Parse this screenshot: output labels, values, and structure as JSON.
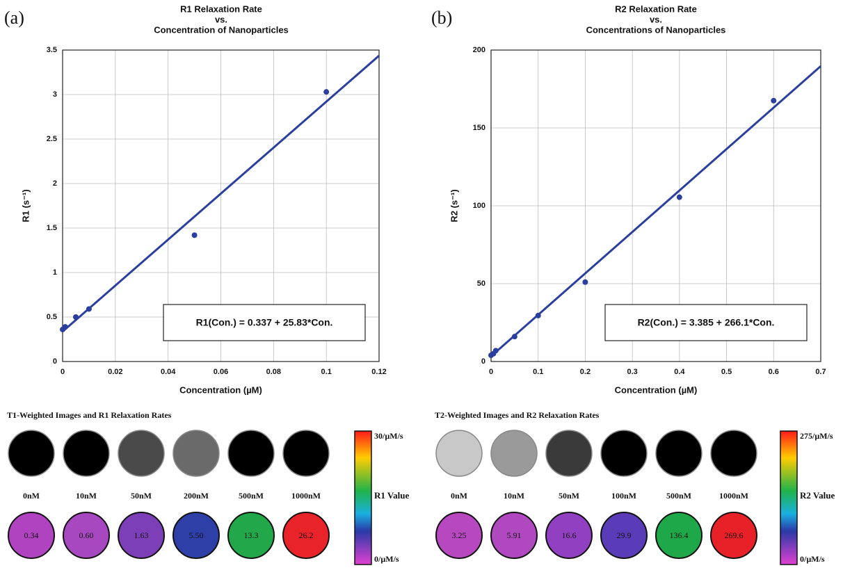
{
  "chart_data": [
    {
      "type": "scatter",
      "panel_label": "(a)",
      "title": [
        "R1 Relaxation Rate",
        "vs.",
        "Concentration of Nanoparticles"
      ],
      "xlabel": "Concentration (µM)",
      "ylabel": "R1 (s⁻¹)",
      "annotation": "R1(Con.) = 0.337 + 25.83*Con.",
      "xlim": [
        0,
        0.12
      ],
      "ylim": [
        0,
        3.5
      ],
      "xticks": [
        0,
        0.02,
        0.04,
        0.06,
        0.08,
        0.1,
        0.12
      ],
      "yticks": [
        0,
        0.5,
        1,
        1.5,
        2,
        2.5,
        3,
        3.5
      ],
      "grid": true,
      "series": [
        {
          "style": "points",
          "color": "#2b3f9e",
          "x": [
            0,
            0.001,
            0.005,
            0.01,
            0.05,
            0.1
          ],
          "values": [
            0.36,
            0.39,
            0.5,
            0.59,
            1.42,
            3.03
          ]
        },
        {
          "style": "line",
          "color": "#2b3f9e",
          "x": [
            0,
            0.12
          ],
          "values": [
            0.337,
            3.437
          ]
        }
      ]
    },
    {
      "type": "scatter",
      "panel_label": "(b)",
      "title": [
        "R2 Relaxation Rate",
        "vs.",
        "Concentrations of Nanoparticles"
      ],
      "xlabel": "Concentration (µM)",
      "ylabel": "R2 (s⁻¹)",
      "annotation": "R2(Con.) = 3.385 + 266.1*Con.",
      "xlim": [
        0,
        0.7
      ],
      "ylim": [
        0,
        200
      ],
      "xticks": [
        0,
        0.1,
        0.2,
        0.3,
        0.4,
        0.5,
        0.6,
        0.7
      ],
      "yticks": [
        0,
        50,
        100,
        150,
        200
      ],
      "grid": true,
      "series": [
        {
          "style": "points",
          "color": "#2b3f9e",
          "x": [
            0,
            0.005,
            0.01,
            0.05,
            0.1,
            0.2,
            0.4,
            0.6
          ],
          "values": [
            4,
            5,
            7,
            16,
            29.5,
            51,
            105.5,
            167.5
          ]
        },
        {
          "style": "line",
          "color": "#2b3f9e",
          "x": [
            0,
            0.7
          ],
          "values": [
            3.385,
            189.655
          ]
        }
      ]
    }
  ],
  "image_panels": [
    {
      "title": "T1-Weighted Images and R1 Relaxation Rates",
      "items": [
        {
          "label": "0nM",
          "image_color": "#000000",
          "value": "0.34",
          "value_color": "#b044c0"
        },
        {
          "label": "10nM",
          "image_color": "#000000",
          "value": "0.60",
          "value_color": "#a848c0"
        },
        {
          "label": "50nM",
          "image_color": "#4a4a4a",
          "value": "1.63",
          "value_color": "#7d3fb8"
        },
        {
          "label": "200nM",
          "image_color": "#6a6a6a",
          "value": "5.50",
          "value_color": "#2f3fa8"
        },
        {
          "label": "500nM",
          "image_color": "#000000",
          "value": "13.3",
          "value_color": "#22a84a"
        },
        {
          "label": "1000nM",
          "image_color": "#000000",
          "value": "26.2",
          "value_color": "#e8242a"
        }
      ],
      "colorbar": {
        "top": "30/µM/s",
        "middle": "R1 Value",
        "bottom": "0/µM/s"
      }
    },
    {
      "title": "T2-Weighted Images and R2 Relaxation Rates",
      "items": [
        {
          "label": "0nM",
          "image_color": "#c8c8c8",
          "value": "3.25",
          "value_color": "#b848c0"
        },
        {
          "label": "10nM",
          "image_color": "#9a9a9a",
          "value": "5.91",
          "value_color": "#b048c0"
        },
        {
          "label": "50nM",
          "image_color": "#3a3a3a",
          "value": "16.6",
          "value_color": "#9040c0"
        },
        {
          "label": "100nM",
          "image_color": "#000000",
          "value": "29.9",
          "value_color": "#5a3cb8"
        },
        {
          "label": "500nM",
          "image_color": "#000000",
          "value": "136.4",
          "value_color": "#1fa84a"
        },
        {
          "label": "1000nM",
          "image_color": "#000000",
          "value": "269.6",
          "value_color": "#e82028"
        }
      ],
      "colorbar": {
        "top": "275/µM/s",
        "middle": "R2 Value",
        "bottom": "0/µM/s"
      }
    }
  ]
}
